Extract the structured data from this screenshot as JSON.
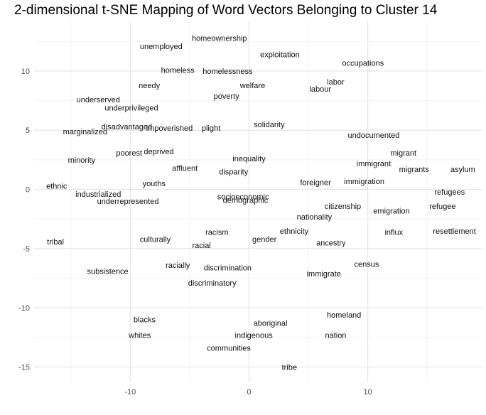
{
  "chart_data": {
    "type": "scatter",
    "title": "2-dimensional t-SNE Mapping of Word Vectors Belonging to Cluster 14",
    "xlabel": "",
    "ylabel": "",
    "xlim": [
      -18.1,
      19.6
    ],
    "ylim": [
      -16.3,
      14.2
    ],
    "x_ticks": [
      -10,
      0,
      10
    ],
    "y_ticks": [
      -15,
      -10,
      -5,
      0,
      5,
      10
    ],
    "grid": true,
    "points": [
      {
        "label": "homeownership",
        "x": -2.5,
        "y": 12.8
      },
      {
        "label": "unemployed",
        "x": -7.4,
        "y": 12.1
      },
      {
        "label": "exploitation",
        "x": 2.6,
        "y": 11.4
      },
      {
        "label": "occupations",
        "x": 9.6,
        "y": 10.7
      },
      {
        "label": "homeless",
        "x": -6.0,
        "y": 10.1
      },
      {
        "label": "homelessness",
        "x": -1.8,
        "y": 10.0
      },
      {
        "label": "labor",
        "x": 7.3,
        "y": 9.1
      },
      {
        "label": "needy",
        "x": -8.4,
        "y": 8.8
      },
      {
        "label": "welfare",
        "x": 0.3,
        "y": 8.8
      },
      {
        "label": "labour",
        "x": 6.0,
        "y": 8.5
      },
      {
        "label": "poverty",
        "x": -1.9,
        "y": 7.9
      },
      {
        "label": "underserved",
        "x": -12.7,
        "y": 7.6
      },
      {
        "label": "underprivileged",
        "x": -9.9,
        "y": 6.9
      },
      {
        "label": "solidarity",
        "x": 1.7,
        "y": 5.5
      },
      {
        "label": "disadvantaged",
        "x": -10.3,
        "y": 5.3
      },
      {
        "label": "impoverished",
        "x": -6.7,
        "y": 5.2
      },
      {
        "label": "plight",
        "x": -3.2,
        "y": 5.2
      },
      {
        "label": "marginalized",
        "x": -13.8,
        "y": 4.9
      },
      {
        "label": "undocumented",
        "x": 10.5,
        "y": 4.6
      },
      {
        "label": "migrant",
        "x": 13.0,
        "y": 3.1
      },
      {
        "label": "poorest",
        "x": -10.1,
        "y": 3.1
      },
      {
        "label": "deprived",
        "x": -7.6,
        "y": 3.2
      },
      {
        "label": "minority",
        "x": -14.1,
        "y": 2.5
      },
      {
        "label": "inequality",
        "x": 0.0,
        "y": 2.6
      },
      {
        "label": "immigrant",
        "x": 10.5,
        "y": 2.2
      },
      {
        "label": "affluent",
        "x": -5.4,
        "y": 1.8
      },
      {
        "label": "migrants",
        "x": 13.9,
        "y": 1.7
      },
      {
        "label": "asylum",
        "x": 18.0,
        "y": 1.7
      },
      {
        "label": "disparity",
        "x": -1.3,
        "y": 1.5
      },
      {
        "label": "foreigner",
        "x": 5.6,
        "y": 0.6
      },
      {
        "label": "immigration",
        "x": 9.7,
        "y": 0.7
      },
      {
        "label": "youths",
        "x": -8.0,
        "y": 0.5
      },
      {
        "label": "ethnic",
        "x": -16.2,
        "y": 0.3
      },
      {
        "label": "refugees",
        "x": 16.9,
        "y": -0.2
      },
      {
        "label": "industrialized",
        "x": -12.7,
        "y": -0.4
      },
      {
        "label": "socioeconomic",
        "x": -0.5,
        "y": -0.6
      },
      {
        "label": "demographic",
        "x": -0.3,
        "y": -0.9
      },
      {
        "label": "underrepresented",
        "x": -10.2,
        "y": -1.0
      },
      {
        "label": "citizenship",
        "x": 7.9,
        "y": -1.4
      },
      {
        "label": "refugee",
        "x": 16.3,
        "y": -1.4
      },
      {
        "label": "emigration",
        "x": 12.0,
        "y": -1.8
      },
      {
        "label": "nationality",
        "x": 5.5,
        "y": -2.3
      },
      {
        "label": "ethnicity",
        "x": 3.8,
        "y": -3.5
      },
      {
        "label": "racism",
        "x": -2.7,
        "y": -3.6
      },
      {
        "label": "influx",
        "x": 12.2,
        "y": -3.6
      },
      {
        "label": "resettlement",
        "x": 17.3,
        "y": -3.5
      },
      {
        "label": "culturally",
        "x": -7.9,
        "y": -4.2
      },
      {
        "label": "gender",
        "x": 1.3,
        "y": -4.2
      },
      {
        "label": "tribal",
        "x": -16.3,
        "y": -4.4
      },
      {
        "label": "ancestry",
        "x": 6.9,
        "y": -4.5
      },
      {
        "label": "racial",
        "x": -4.0,
        "y": -4.7
      },
      {
        "label": "census",
        "x": 9.9,
        "y": -6.3
      },
      {
        "label": "racially",
        "x": -6.0,
        "y": -6.4
      },
      {
        "label": "discrimination",
        "x": -1.8,
        "y": -6.6
      },
      {
        "label": "subsistence",
        "x": -11.9,
        "y": -6.9
      },
      {
        "label": "immigrate",
        "x": 6.3,
        "y": -7.1
      },
      {
        "label": "discriminatory",
        "x": -3.1,
        "y": -7.9
      },
      {
        "label": "homeland",
        "x": 8.0,
        "y": -10.6
      },
      {
        "label": "blacks",
        "x": -8.8,
        "y": -11.0
      },
      {
        "label": "aboriginal",
        "x": 1.8,
        "y": -11.3
      },
      {
        "label": "whites",
        "x": -9.2,
        "y": -12.3
      },
      {
        "label": "indigenous",
        "x": 0.4,
        "y": -12.3
      },
      {
        "label": "nation",
        "x": 7.3,
        "y": -12.3
      },
      {
        "label": "communities",
        "x": -1.7,
        "y": -13.4
      },
      {
        "label": "tribe",
        "x": 3.4,
        "y": -15.0
      }
    ]
  }
}
